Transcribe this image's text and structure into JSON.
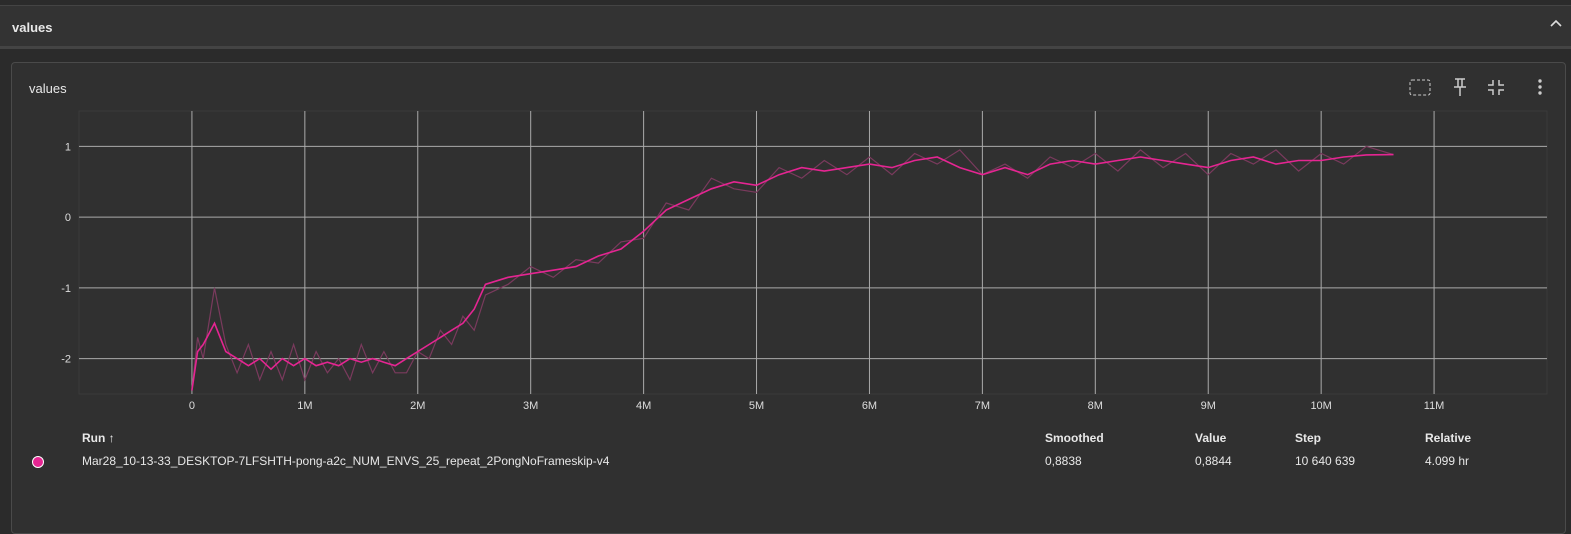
{
  "section_title": "values",
  "card_title": "values",
  "chart_data": {
    "type": "line",
    "x": [
      0,
      50000,
      100000,
      200000,
      300000,
      400000,
      500000,
      600000,
      700000,
      800000,
      900000,
      1000000,
      1100000,
      1200000,
      1300000,
      1400000,
      1500000,
      1600000,
      1700000,
      1800000,
      1900000,
      2000000,
      2100000,
      2200000,
      2300000,
      2400000,
      2500000,
      2600000,
      2800000,
      3000000,
      3200000,
      3400000,
      3600000,
      3800000,
      4000000,
      4200000,
      4400000,
      4600000,
      4800000,
      5000000,
      5200000,
      5400000,
      5600000,
      5800000,
      6000000,
      6200000,
      6400000,
      6600000,
      6800000,
      7000000,
      7200000,
      7400000,
      7600000,
      7800000,
      8000000,
      8200000,
      8400000,
      8600000,
      8800000,
      9000000,
      9200000,
      9400000,
      9600000,
      9800000,
      10000000,
      10200000,
      10400000,
      10640639
    ],
    "series": [
      {
        "color": "#7a3a5d",
        "values": [
          -2.45,
          -1.7,
          -2.0,
          -1.0,
          -1.8,
          -2.2,
          -1.8,
          -2.3,
          -1.9,
          -2.3,
          -1.8,
          -2.3,
          -1.9,
          -2.2,
          -2.0,
          -2.3,
          -1.8,
          -2.2,
          -1.9,
          -2.2,
          -2.2,
          -1.9,
          -2.0,
          -1.6,
          -1.8,
          -1.4,
          -1.6,
          -1.1,
          -0.95,
          -0.7,
          -0.85,
          -0.6,
          -0.65,
          -0.35,
          -0.3,
          0.2,
          0.1,
          0.55,
          0.4,
          0.35,
          0.7,
          0.55,
          0.8,
          0.6,
          0.85,
          0.6,
          0.9,
          0.75,
          0.95,
          0.6,
          0.75,
          0.55,
          0.85,
          0.7,
          0.9,
          0.65,
          0.95,
          0.7,
          0.9,
          0.6,
          0.9,
          0.75,
          0.95,
          0.65,
          0.9,
          0.75,
          1.0,
          0.8844
        ]
      },
      {
        "name": "Mar28_10-13-33_DESKTOP-7LFSHTH-pong-a2c_NUM_ENVS_25_repeat_2PongNoFrameskip-v4",
        "color": "#e52592",
        "values": [
          -2.45,
          -1.9,
          -1.8,
          -1.5,
          -1.9,
          -2.0,
          -2.1,
          -2.0,
          -2.15,
          -2.0,
          -2.1,
          -2.0,
          -2.1,
          -2.05,
          -2.1,
          -2.0,
          -2.05,
          -2.0,
          -2.05,
          -2.1,
          -2.0,
          -1.9,
          -1.8,
          -1.7,
          -1.6,
          -1.5,
          -1.3,
          -0.95,
          -0.85,
          -0.8,
          -0.75,
          -0.7,
          -0.55,
          -0.45,
          -0.2,
          0.1,
          0.25,
          0.4,
          0.5,
          0.45,
          0.6,
          0.7,
          0.65,
          0.7,
          0.75,
          0.7,
          0.8,
          0.85,
          0.7,
          0.6,
          0.7,
          0.6,
          0.75,
          0.8,
          0.75,
          0.8,
          0.85,
          0.8,
          0.75,
          0.7,
          0.8,
          0.85,
          0.75,
          0.8,
          0.8,
          0.85,
          0.88,
          0.8838
        ]
      }
    ],
    "xlim": [
      -1000000,
      12000000
    ],
    "xticks": [
      0,
      {
        "value": 1000000,
        "label": "1M"
      },
      {
        "value": 2000000,
        "label": "2M"
      },
      {
        "value": 3000000,
        "label": "3M"
      },
      {
        "value": 4000000,
        "label": "4M"
      },
      {
        "value": 5000000,
        "label": "5M"
      },
      {
        "value": 6000000,
        "label": "6M"
      },
      {
        "value": 7000000,
        "label": "7M"
      },
      {
        "value": 8000000,
        "label": "8M"
      },
      {
        "value": 9000000,
        "label": "9M"
      },
      {
        "value": 10000000,
        "label": "10M"
      },
      {
        "value": 11000000,
        "label": "11M"
      }
    ],
    "ylim": [
      -2.5,
      1.5
    ],
    "yticks": [
      -2,
      -1,
      0,
      1
    ],
    "grid": true
  },
  "table": {
    "headers": [
      "Run ↑",
      "Smoothed",
      "Value",
      "Step",
      "Relative"
    ],
    "rows": [
      [
        "Mar28_10-13-33_DESKTOP-7LFSHTH-pong-a2c_NUM_ENVS_25_repeat_2PongNoFrameskip-v4",
        "0,8838",
        "0,8844",
        "10 640 639",
        "4.099 hr"
      ]
    ]
  }
}
